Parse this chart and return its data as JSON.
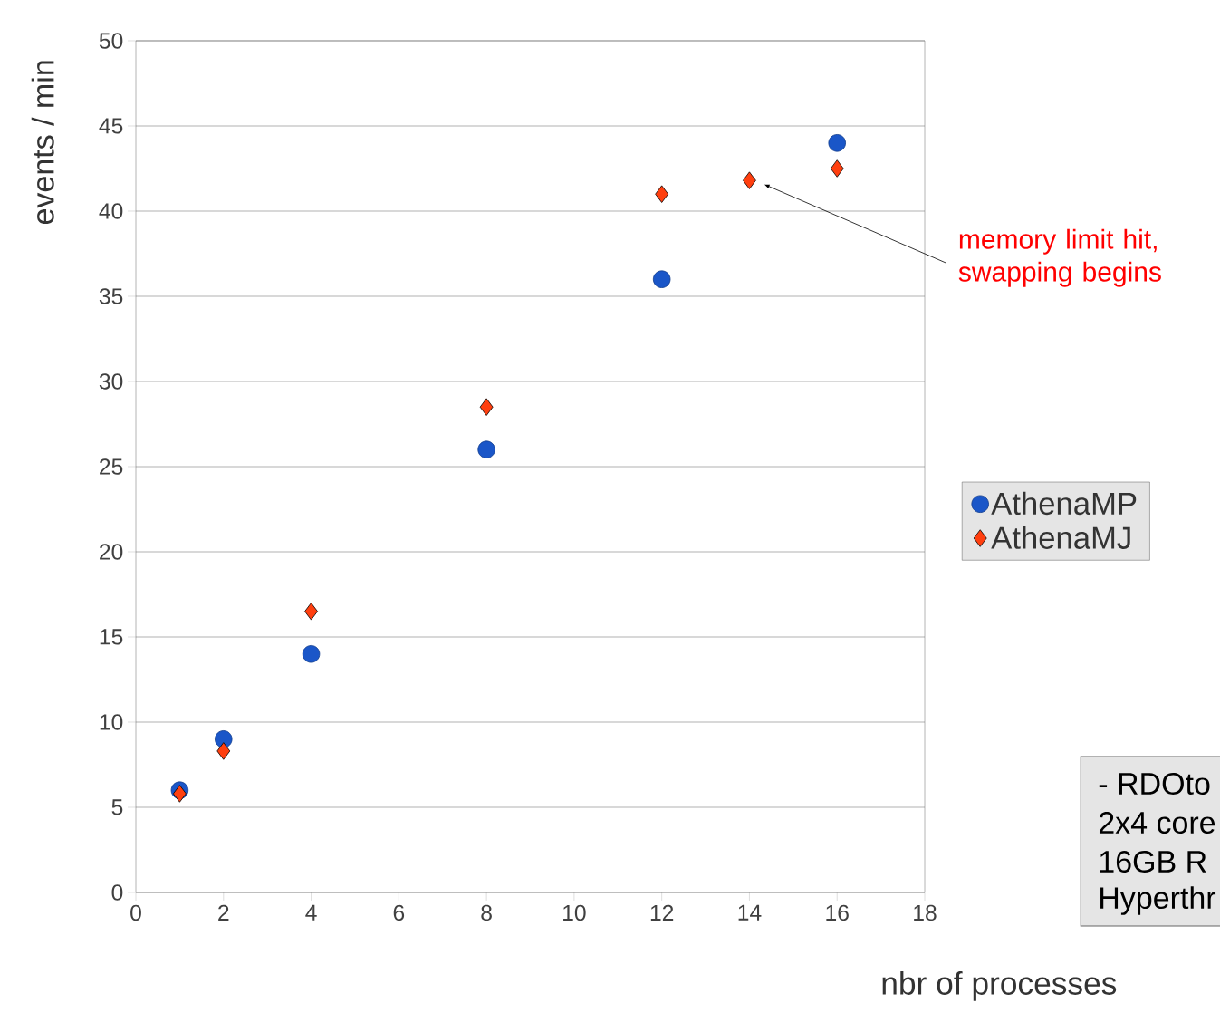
{
  "chart_data": {
    "type": "scatter",
    "xlabel": "nbr of processes",
    "ylabel": "events / min",
    "xlim": [
      0,
      18
    ],
    "xticks": [
      0,
      2,
      4,
      6,
      8,
      10,
      12,
      14,
      16,
      18
    ],
    "ylim": [
      0,
      50
    ],
    "yticks": [
      0,
      5,
      10,
      15,
      20,
      25,
      30,
      35,
      40,
      45,
      50
    ],
    "grid": "y",
    "legend": "right",
    "series": [
      {
        "name": "AthenaMP",
        "color": "#1a56c8",
        "marker": "circle",
        "x": [
          1,
          2,
          4,
          8,
          12,
          16
        ],
        "values": [
          6,
          9,
          14,
          26,
          36,
          44
        ]
      },
      {
        "name": "AthenaMJ",
        "color": "#ff3f0f",
        "marker": "diamond",
        "x": [
          1,
          2,
          4,
          8,
          12,
          14,
          16
        ],
        "values": [
          5.8,
          8.3,
          16.5,
          28.5,
          41,
          41.8,
          42.5
        ]
      }
    ],
    "annotations": [
      "memory limit hit, swapping begins",
      "- RDOto",
      "2x4 core",
      "16GB R",
      "Hyperthr"
    ]
  }
}
